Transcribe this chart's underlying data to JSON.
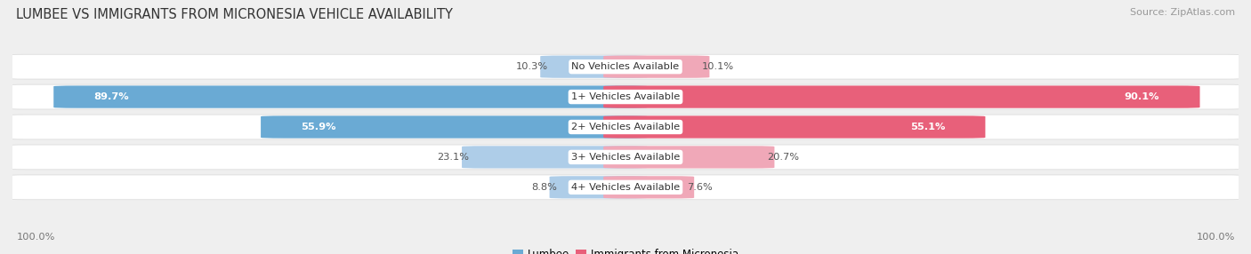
{
  "title": "LUMBEE VS IMMIGRANTS FROM MICRONESIA VEHICLE AVAILABILITY",
  "source": "Source: ZipAtlas.com",
  "categories": [
    "No Vehicles Available",
    "1+ Vehicles Available",
    "2+ Vehicles Available",
    "3+ Vehicles Available",
    "4+ Vehicles Available"
  ],
  "lumbee_values": [
    10.3,
    89.7,
    55.9,
    23.1,
    8.8
  ],
  "micronesia_values": [
    10.1,
    90.1,
    55.1,
    20.7,
    7.6
  ],
  "lumbee_dark": "#6aaad4",
  "lumbee_light": "#aecde8",
  "micronesia_dark": "#e8607a",
  "micronesia_light": "#f0a8b8",
  "background_color": "#efefef",
  "row_bg_color": "#ffffff",
  "title_fontsize": 10.5,
  "label_fontsize": 8.2,
  "legend_fontsize": 8.5,
  "source_fontsize": 8
}
